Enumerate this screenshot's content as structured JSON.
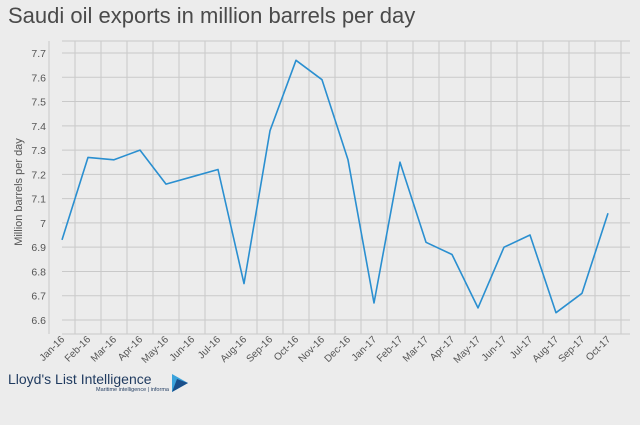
{
  "chart_data": {
    "type": "line",
    "title": "Saudi oil exports in million barrels per day",
    "ylabel": "Million barrels per day",
    "xlabel": "",
    "ylim": [
      6.6,
      7.7
    ],
    "yticks": [
      "6.6",
      "6.7",
      "6.8",
      "6.9",
      "7",
      "7.1",
      "7.2",
      "7.3",
      "7.4",
      "7.5",
      "7.6",
      "7.7"
    ],
    "grid": true,
    "categories": [
      "Jan-16",
      "Feb-16",
      "Mar-16",
      "Apr-16",
      "May-16",
      "Jun-16",
      "Jul-16",
      "Aug-16",
      "Sep-16",
      "Oct-16",
      "Nov-16",
      "Dec-16",
      "Jan-17",
      "Feb-17",
      "Mar-17",
      "Apr-17",
      "May-17",
      "Jun-17",
      "Jul-17",
      "Aug-17",
      "Sep-17",
      "Oct-17"
    ],
    "series": [
      {
        "values": [
          6.93,
          7.27,
          7.26,
          7.3,
          7.16,
          7.19,
          7.22,
          6.75,
          7.38,
          7.67,
          7.59,
          7.26,
          6.67,
          7.25,
          6.92,
          6.87,
          6.65,
          6.9,
          6.95,
          6.63,
          6.71,
          7.04
        ],
        "color": "#2a8fd0"
      }
    ]
  },
  "brand": {
    "name": "Lloyd's List Intelligence",
    "tagline": "Maritime intelligence | informa",
    "logo_icon": "play-triangle-logo-icon",
    "colors": {
      "text": "#1f3a5f",
      "light": "#3ba3dc",
      "dark": "#1a4f8a"
    }
  }
}
